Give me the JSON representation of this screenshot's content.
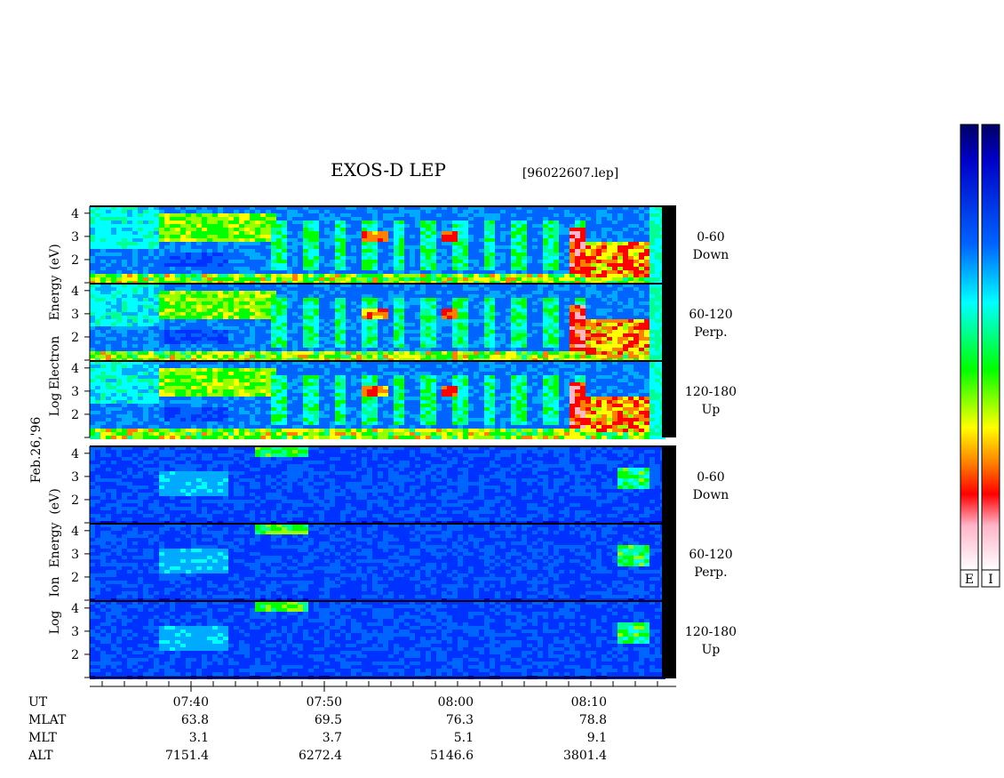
{
  "chart_data": {
    "type": "heatmap",
    "title": "EXOS-D LEP",
    "file_label": "[96022607.lep]",
    "date_label": "Feb.26,'96",
    "electron": {
      "ylabel": [
        "Log",
        "Electron",
        "Energy",
        "(eV)"
      ],
      "panels": [
        {
          "label": [
            "0-60",
            "Down"
          ],
          "yticks": [
            "4",
            "3",
            "2"
          ]
        },
        {
          "label": [
            "60-120",
            "Perp."
          ],
          "yticks": [
            "4",
            "3",
            "2"
          ]
        },
        {
          "label": [
            "120-180",
            "Up"
          ],
          "yticks": [
            "4",
            "3",
            "2"
          ]
        }
      ]
    },
    "ion": {
      "ylabel": [
        "Log",
        "Ion",
        "Energy",
        "(eV)"
      ],
      "panels": [
        {
          "label": [
            "0-60",
            "Down"
          ],
          "yticks": [
            "4",
            "3",
            "2"
          ]
        },
        {
          "label": [
            "60-120",
            "Perp."
          ],
          "yticks": [
            "4",
            "3",
            "2"
          ]
        },
        {
          "label": [
            "120-180",
            "Up"
          ],
          "yticks": [
            "4",
            "3",
            "2"
          ]
        }
      ]
    },
    "ylim": [
      1,
      4.3
    ],
    "x_axis": {
      "row_labels": [
        "UT",
        "MLAT",
        "MLT",
        "ALT"
      ],
      "columns": [
        {
          "UT": "07:40",
          "MLAT": "63.8",
          "MLT": "3.1",
          "ALT": "7151.4"
        },
        {
          "UT": "07:50",
          "MLAT": "69.5",
          "MLT": "3.7",
          "ALT": "6272.4"
        },
        {
          "UT": "08:00",
          "MLAT": "76.3",
          "MLT": "5.1",
          "ALT": "5146.6"
        },
        {
          "UT": "08:10",
          "MLAT": "78.8",
          "MLT": "9.1",
          "ALT": "3801.4"
        }
      ]
    },
    "colorbars": [
      "E",
      "I"
    ],
    "colormap": [
      "#ffffff",
      "#ffb4c8",
      "#ff0000",
      "#ff8000",
      "#ffff00",
      "#00ff00",
      "#00ffff",
      "#0064ff",
      "#0000c8",
      "#000064"
    ]
  }
}
